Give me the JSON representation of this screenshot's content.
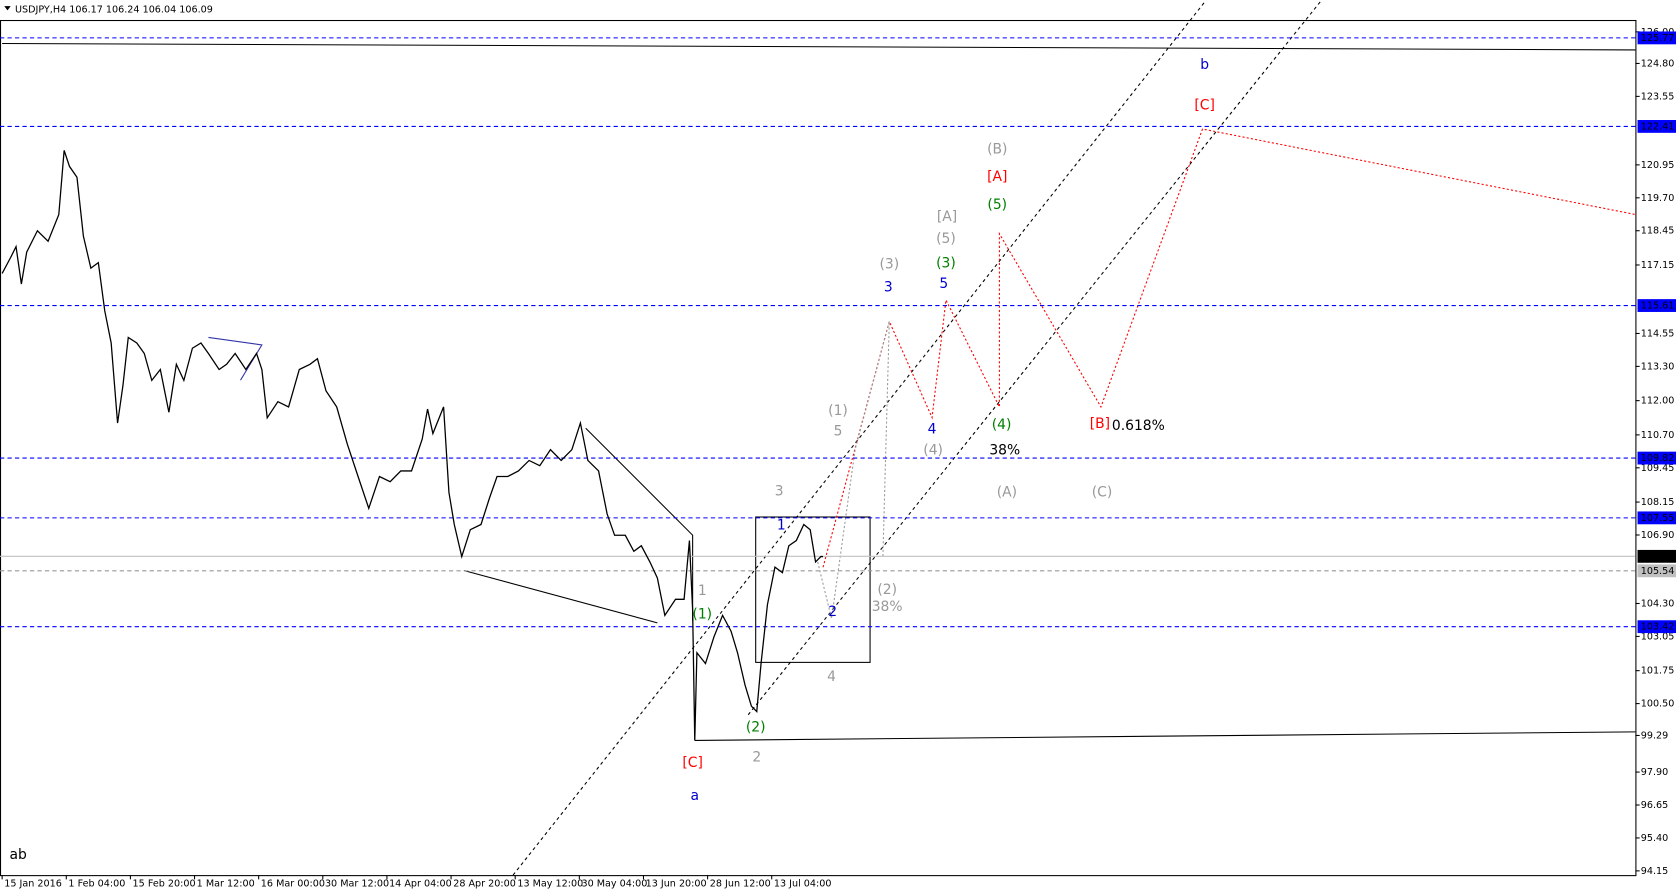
{
  "chart_data": {
    "type": "line",
    "title": "USDJPY,H4  106.17 106.24 106.04 106.09",
    "color": "#000000",
    "xlim": [
      0,
      1530
    ],
    "ylim": [
      93.99,
      126.45
    ],
    "xticks": [
      {
        "value": 2,
        "label": "15 Jan 2016"
      },
      {
        "value": 62,
        "label": "1 Feb 04:00"
      },
      {
        "value": 122,
        "label": "15 Feb 20:00"
      },
      {
        "value": 182,
        "label": "1 Mar 12:00"
      },
      {
        "value": 242,
        "label": "16 Mar 00:00"
      },
      {
        "value": 302,
        "label": "30 Mar 12:00"
      },
      {
        "value": 362,
        "label": "14 Apr 04:00"
      },
      {
        "value": 422,
        "label": "28 Apr 20:00"
      },
      {
        "value": 482,
        "label": "13 May 12:00"
      },
      {
        "value": 542,
        "label": "30 May 04:00"
      },
      {
        "value": 602,
        "label": "13 Jun 20:00"
      },
      {
        "value": 662,
        "label": "28 Jun 12:00"
      },
      {
        "value": 722,
        "label": "13 Jul 04:00"
      }
    ],
    "yticks": [
      {
        "value": 126,
        "label": "126.00"
      },
      {
        "value": 124.8,
        "label": "124.80"
      },
      {
        "value": 123.55,
        "label": "123.55"
      },
      {
        "value": 120.95,
        "label": "120.95"
      },
      {
        "value": 119.7,
        "label": "119.70"
      },
      {
        "value": 118.45,
        "label": "118.45"
      },
      {
        "value": 117.15,
        "label": "117.15"
      },
      {
        "value": 114.55,
        "label": "114.55"
      },
      {
        "value": 113.3,
        "label": "113.30"
      },
      {
        "value": 112,
        "label": "112.00"
      },
      {
        "value": 110.7,
        "label": "110.70"
      },
      {
        "value": 109.45,
        "label": "109.45"
      },
      {
        "value": 108.15,
        "label": "108.15"
      },
      {
        "value": 106.9,
        "label": "106.90"
      },
      {
        "value": 104.3,
        "label": "104.30"
      },
      {
        "value": 103.05,
        "label": "103.05"
      },
      {
        "value": 101.75,
        "label": "101.75"
      },
      {
        "value": 100.5,
        "label": "100.50"
      },
      {
        "value": 99.29,
        "label": "99.29"
      },
      {
        "value": 97.9,
        "label": "97.90"
      },
      {
        "value": 96.65,
        "label": "96.65"
      },
      {
        "value": 95.4,
        "label": "95.40"
      },
      {
        "value": 94.15,
        "label": "94.15"
      }
    ],
    "levels": {
      "values": [
        125.77,
        122.41,
        115.61,
        109.82,
        107.55,
        103.42
      ],
      "color": "#0000ff"
    },
    "current_price": 106.09,
    "reference_price": 105.54,
    "x": [
      2,
      10,
      15,
      20,
      25,
      35,
      45,
      55,
      60,
      65,
      72,
      78,
      85,
      92,
      98,
      104,
      110,
      115,
      120,
      128,
      135,
      142,
      150,
      158,
      165,
      172,
      180,
      188,
      195,
      205,
      212,
      220,
      230,
      240,
      245,
      250,
      260,
      270,
      280,
      290,
      297,
      305,
      315,
      325,
      335,
      345,
      355,
      365,
      375,
      385,
      395,
      400,
      405,
      415,
      420,
      425,
      432,
      440,
      450,
      458,
      465,
      475,
      485,
      495,
      505,
      515,
      525,
      535,
      543,
      550,
      560,
      568,
      575,
      585,
      593,
      600,
      608,
      615,
      622,
      632,
      640,
      645,
      648,
      650,
      652,
      660,
      668,
      676,
      684,
      690,
      697,
      703,
      708,
      712,
      718,
      725,
      732,
      738,
      745,
      752,
      758,
      763,
      768,
      770
    ],
    "values": [
      116.83,
      117.44,
      117.85,
      116.43,
      117.64,
      118.45,
      118.05,
      119.06,
      121.5,
      120.89,
      120.48,
      118.25,
      117.03,
      117.24,
      115.41,
      114.19,
      111.15,
      112.57,
      114.4,
      114.19,
      113.79,
      112.77,
      113.18,
      111.56,
      113.38,
      112.77,
      113.99,
      114.19,
      113.79,
      113.18,
      113.38,
      113.79,
      113.18,
      113.79,
      113.18,
      111.35,
      111.96,
      111.76,
      113.18,
      113.38,
      113.59,
      112.37,
      111.76,
      110.34,
      109.12,
      107.91,
      109.12,
      108.92,
      109.33,
      109.33,
      110.54,
      111.68,
      110.75,
      111.76,
      108.52,
      107.3,
      106.08,
      107.1,
      107.3,
      108.31,
      109.12,
      109.12,
      109.33,
      109.73,
      109.53,
      110.14,
      109.73,
      110.14,
      111.15,
      109.73,
      109.33,
      107.7,
      106.89,
      106.89,
      106.28,
      106.49,
      105.88,
      105.27,
      103.85,
      104.46,
      104.46,
      106.69,
      104.05,
      99.1,
      102.43,
      102.02,
      103.04,
      103.85,
      103.24,
      102.43,
      101.21,
      100.4,
      100.2,
      102.02,
      104.26,
      105.68,
      105.47,
      106.49,
      106.69,
      107.3,
      107.1,
      105.88,
      106.08,
      106.08
    ],
    "annotations": [
      {
        "text": "[C]",
        "x": 648,
        "y": 98.25,
        "color": "#ff0000"
      },
      {
        "text": "a",
        "x": 650,
        "y": 96.99,
        "color": "#0000cc"
      },
      {
        "text": "1",
        "x": 657,
        "y": 104.78,
        "color": "#999999"
      },
      {
        "text": "(1)",
        "x": 657,
        "y": 103.89,
        "color": "#008000"
      },
      {
        "text": "(2)",
        "x": 707,
        "y": 99.59,
        "color": "#008000"
      },
      {
        "text": "2",
        "x": 708,
        "y": 98.45,
        "color": "#999999"
      },
      {
        "text": "3",
        "x": 729,
        "y": 108.56,
        "color": "#999999"
      },
      {
        "text": "1",
        "x": 731,
        "y": 107.26,
        "color": "#0000cc"
      },
      {
        "text": "2",
        "x": 779,
        "y": 103.97,
        "color": "#0000cc"
      },
      {
        "text": "4",
        "x": 778,
        "y": 101.5,
        "color": "#999999"
      },
      {
        "text": "38%",
        "x": 830,
        "y": 104.17,
        "color": "#999999"
      },
      {
        "text": "(2)",
        "x": 830,
        "y": 104.82,
        "color": "#999999"
      },
      {
        "text": "(1)",
        "x": 784,
        "y": 111.6,
        "color": "#999999"
      },
      {
        "text": "5",
        "x": 784,
        "y": 110.83,
        "color": "#999999"
      },
      {
        "text": "(3)",
        "x": 832,
        "y": 117.16,
        "color": "#999999"
      },
      {
        "text": "3",
        "x": 831,
        "y": 116.3,
        "color": "#0000cc"
      },
      {
        "text": "4",
        "x": 872,
        "y": 110.91,
        "color": "#0000cc"
      },
      {
        "text": "(4)",
        "x": 873,
        "y": 110.1,
        "color": "#999999"
      },
      {
        "text": "[A]",
        "x": 886,
        "y": 118.98,
        "color": "#999999"
      },
      {
        "text": "(5)",
        "x": 885,
        "y": 118.13,
        "color": "#999999"
      },
      {
        "text": "(3)",
        "x": 885,
        "y": 117.2,
        "color": "#008000"
      },
      {
        "text": "5",
        "x": 883,
        "y": 116.43,
        "color": "#0000cc"
      },
      {
        "text": "(B)",
        "x": 933,
        "y": 121.54,
        "color": "#999999"
      },
      {
        "text": "[A]",
        "x": 933,
        "y": 120.48,
        "color": "#ff0000"
      },
      {
        "text": "(5)",
        "x": 933,
        "y": 119.43,
        "color": "#008000"
      },
      {
        "text": "(4)",
        "x": 937,
        "y": 111.07,
        "color": "#008000"
      },
      {
        "text": "38%",
        "x": 940,
        "y": 110.1,
        "color": "#000000"
      },
      {
        "text": "(A)",
        "x": 942,
        "y": 108.52,
        "color": "#999999"
      },
      {
        "text": "(C)",
        "x": 1031,
        "y": 108.52,
        "color": "#999999"
      },
      {
        "text": "[B]",
        "x": 1029,
        "y": 111.11,
        "color": "#ff0000"
      },
      {
        "text": "0.618%",
        "x": 1065,
        "y": 111.03,
        "color": "#000000"
      },
      {
        "text": "[C]",
        "x": 1127,
        "y": 123.2,
        "color": "#ff0000"
      },
      {
        "text": "b",
        "x": 1127,
        "y": 124.74,
        "color": "#0000cc"
      },
      {
        "text": "ab",
        "x": 17,
        "y": 94.76,
        "color": "#000000"
      }
    ]
  }
}
